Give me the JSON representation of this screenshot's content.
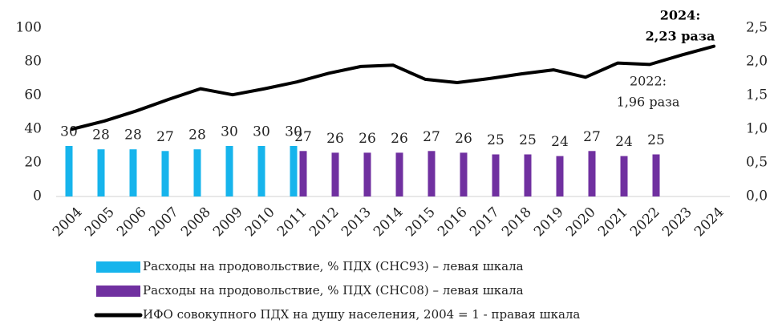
{
  "chart_data": {
    "type": "bar",
    "categories": [
      "2004",
      "2005",
      "2006",
      "2007",
      "2008",
      "2009",
      "2010",
      "2011",
      "2012",
      "2013",
      "2014",
      "2015",
      "2016",
      "2017",
      "2018",
      "2019",
      "2020",
      "2021",
      "2022",
      "2023",
      "2024"
    ],
    "series": [
      {
        "name": "Расходы на продовольствие, % ПДХ (СНС93) – левая шкала",
        "color": "#16b4ec",
        "type": "bar",
        "values": [
          30,
          28,
          28,
          27,
          28,
          30,
          30,
          30,
          null,
          null,
          null,
          null,
          null,
          null,
          null,
          null,
          null,
          null,
          null,
          null,
          null
        ]
      },
      {
        "name": "Расходы на продовольствие, % ПДХ (СНС08) – левая шкала",
        "color": "#7030a0",
        "type": "bar",
        "values": [
          null,
          null,
          null,
          null,
          null,
          null,
          null,
          27,
          26,
          26,
          26,
          27,
          26,
          25,
          25,
          24,
          27,
          24,
          25,
          null,
          null
        ]
      },
      {
        "name": "ИФО совокупного ПДХ на душу населения, 2004 = 1 - правая шкала",
        "color": "#000000",
        "type": "line",
        "axis": "y2",
        "values": [
          1.0,
          1.12,
          1.27,
          1.44,
          1.6,
          1.51,
          1.6,
          1.7,
          1.83,
          1.93,
          1.95,
          1.74,
          1.69,
          1.75,
          1.82,
          1.88,
          1.77,
          1.98,
          1.96,
          2.1,
          2.23
        ]
      }
    ],
    "ylim": [
      0,
      100
    ],
    "yticks": [
      0,
      20,
      40,
      60,
      80,
      100
    ],
    "y2lim": [
      0,
      2.5
    ],
    "y2ticks": [
      {
        "value": 0,
        "label": "0,0"
      },
      {
        "value": 0.5,
        "label": "0,5"
      },
      {
        "value": 1,
        "label": "1,0"
      },
      {
        "value": 1.5,
        "label": "1,5"
      },
      {
        "value": 2,
        "label": "2,0"
      },
      {
        "value": 2.5,
        "label": "2,5"
      }
    ],
    "annotations": [
      {
        "lines": [
          "2024:",
          "2,23 раза"
        ],
        "bold": true
      },
      {
        "lines": [
          "2022:",
          "1,96 раза"
        ],
        "bold": false
      }
    ],
    "legend": "bottom",
    "grid": false
  }
}
